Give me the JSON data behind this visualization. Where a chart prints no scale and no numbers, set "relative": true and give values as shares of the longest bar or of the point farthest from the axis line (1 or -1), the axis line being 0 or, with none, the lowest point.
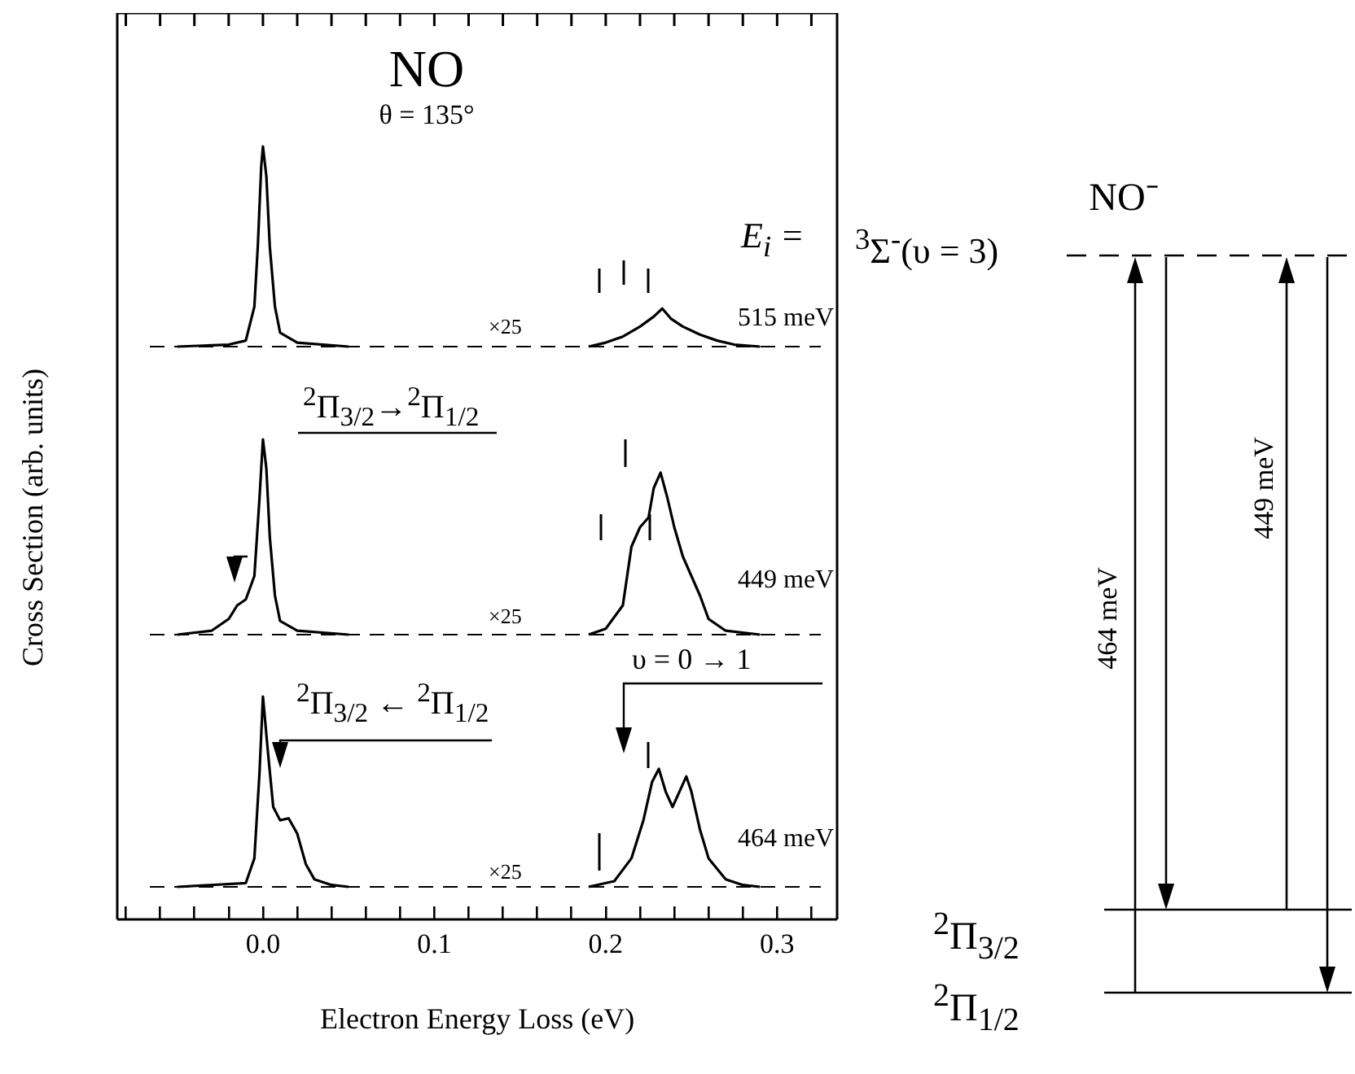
{
  "chart_data": [
    {
      "type": "line",
      "title": "NO",
      "subtitle": "θ = 135°",
      "annotations": [
        "E$_{i}$ =",
        "515 meV",
        "×25"
      ],
      "relative": true,
      "tick_labels": false,
      "color": "#000000",
      "xlim": [
        -0.085,
        0.335
      ],
      "ref_lines": [
        {
          "axis": "y",
          "value": 0,
          "line_style": "dashed"
        }
      ],
      "x": [
        -0.05,
        -0.02,
        -0.01,
        -0.005,
        -0.003,
        -0.001,
        0,
        0.002,
        0.004,
        0.007,
        0.01,
        0.02,
        0.05,
        0.12,
        0.19,
        0.2,
        0.21,
        0.22,
        0.228,
        0.233,
        0.238,
        0.245,
        0.255,
        0.265,
        0.275,
        0.29
      ],
      "values": [
        0,
        0.01,
        0.03,
        0.2,
        0.5,
        0.9,
        1,
        0.85,
        0.5,
        0.2,
        0.07,
        0.02,
        0,
        null,
        0,
        0.02,
        0.05,
        0.1,
        0.15,
        0.19,
        0.14,
        0.1,
        0.06,
        0.03,
        0.01,
        0
      ]
    },
    {
      "type": "line",
      "ylabel": "Cross Section (arb. units)",
      "annotations": [
        "$^{2}$Π$_{3/2}$→$^{2}$Π$_{1/2}$",
        "449 meV",
        "×25"
      ],
      "relative": true,
      "tick_labels": false,
      "color": "#000000",
      "xlim": [
        -0.085,
        0.335
      ],
      "ref_lines": [
        {
          "axis": "y",
          "value": 0,
          "line_style": "dashed"
        }
      ],
      "x": [
        -0.05,
        -0.03,
        -0.02,
        -0.015,
        -0.01,
        -0.005,
        -0.002,
        0,
        0.002,
        0.004,
        0.007,
        0.01,
        0.02,
        0.05,
        0.12,
        0.19,
        0.2,
        0.21,
        0.215,
        0.22,
        0.225,
        0.228,
        0.232,
        0.236,
        0.24,
        0.245,
        0.25,
        0.255,
        0.26,
        0.27,
        0.29
      ],
      "values": [
        0,
        0.02,
        0.08,
        0.15,
        0.18,
        0.3,
        0.7,
        1,
        0.85,
        0.5,
        0.2,
        0.07,
        0.02,
        0,
        null,
        0,
        0.03,
        0.15,
        0.45,
        0.55,
        0.6,
        0.75,
        0.83,
        0.7,
        0.55,
        0.4,
        0.3,
        0.2,
        0.08,
        0.02,
        0
      ]
    },
    {
      "type": "line",
      "xlabel": "Electron Energy Loss (eV)",
      "annotations": [
        "$^{2}$Π$_{3/2}$ ← $^{2}$Π$_{1/2}$",
        "υ = 0 → 1",
        "464 meV",
        "×25"
      ],
      "relative": true,
      "tick_labels": "x",
      "color": "#000000",
      "xlim": [
        -0.085,
        0.335
      ],
      "xticks": [
        {
          "value": -0.08,
          "label": null
        },
        {
          "value": -0.06,
          "label": null
        },
        {
          "value": -0.04,
          "label": null
        },
        {
          "value": -0.02,
          "label": null
        },
        {
          "value": 0,
          "label": "0.0"
        },
        {
          "value": 0.02,
          "label": null
        },
        {
          "value": 0.04,
          "label": null
        },
        {
          "value": 0.06,
          "label": null
        },
        {
          "value": 0.08,
          "label": null
        },
        0.1,
        {
          "value": 0.12,
          "label": null
        },
        {
          "value": 0.14,
          "label": null
        },
        {
          "value": 0.16,
          "label": null
        },
        {
          "value": 0.18,
          "label": null
        },
        0.2,
        {
          "value": 0.22,
          "label": null
        },
        {
          "value": 0.24,
          "label": null
        },
        {
          "value": 0.26,
          "label": null
        },
        {
          "value": 0.28,
          "label": null
        },
        0.3,
        {
          "value": 0.32,
          "label": null
        }
      ],
      "ref_lines": [
        {
          "axis": "y",
          "value": 0,
          "line_style": "dashed"
        }
      ],
      "x": [
        -0.05,
        -0.01,
        -0.005,
        -0.002,
        0,
        0.003,
        0.006,
        0.01,
        0.015,
        0.02,
        0.025,
        0.03,
        0.04,
        0.05,
        0.12,
        0.19,
        0.205,
        0.215,
        0.222,
        0.227,
        0.231,
        0.235,
        0.239,
        0.243,
        0.247,
        0.25,
        0.255,
        0.26,
        0.27,
        0.28,
        0.29
      ],
      "values": [
        0,
        0.02,
        0.15,
        0.6,
        1,
        0.7,
        0.42,
        0.35,
        0.36,
        0.28,
        0.12,
        0.04,
        0.01,
        0,
        null,
        0,
        0.03,
        0.15,
        0.35,
        0.55,
        0.62,
        0.5,
        0.42,
        0.5,
        0.58,
        0.5,
        0.3,
        0.15,
        0.04,
        0.01,
        0
      ]
    },
    {
      "type": "other",
      "title": "NO⁻",
      "annotations": [
        "$^{3}$Σ$^{-}$(υ = 3)",
        "$^{2}$Π$_{3/2}$",
        "$^{2}$Π$_{1/2}$",
        "464 meV",
        "449 meV"
      ]
    }
  ]
}
